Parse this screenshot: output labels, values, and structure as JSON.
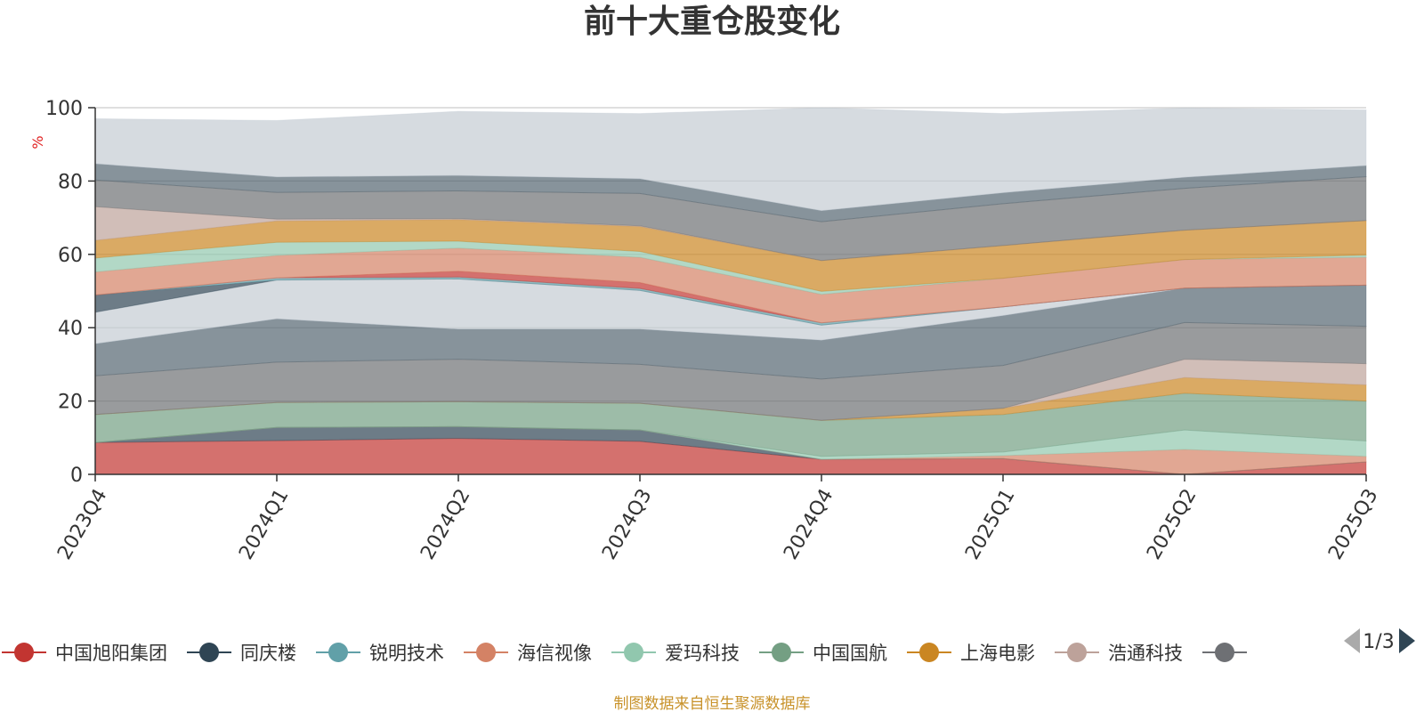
{
  "colors": {
    "unit": "#e02020",
    "source": "#c8922a",
    "axis": "#333333",
    "grid": "#d9d9d9"
  },
  "footer": {
    "source": "制图数据来自恒生聚源数据库"
  },
  "legend": {
    "page": "1/3",
    "items": [
      {
        "name": "中国旭阳集团",
        "color": "#c23531"
      },
      {
        "name": "同庆楼",
        "color": "#2f4554"
      },
      {
        "name": "锐明技术",
        "color": "#61a0a8"
      },
      {
        "name": "海信视像",
        "color": "#d48265"
      },
      {
        "name": "爱玛科技",
        "color": "#91c7ae"
      },
      {
        "name": "中国国航",
        "color": "#749f83"
      },
      {
        "name": "上海电影",
        "color": "#ca8622"
      },
      {
        "name": "浩通科技",
        "color": "#bda29a"
      },
      {
        "name": "",
        "color": "#6e7074"
      }
    ]
  },
  "chart_data": {
    "type": "area",
    "stacked": true,
    "title": "前十大重仓股变化",
    "ylabel": "%",
    "ylim": [
      0,
      100
    ],
    "yticks": [
      0,
      20,
      40,
      60,
      80,
      100
    ],
    "grid": true,
    "legend_position": "bottom",
    "categories": [
      "2023Q4",
      "2024Q1",
      "2024Q2",
      "2024Q3",
      "2024Q4",
      "2025Q1",
      "2025Q2",
      "2025Q3"
    ],
    "series": [
      {
        "name": "中国旭阳集团",
        "color": "#c23531",
        "values": [
          8.7,
          9.2,
          9.8,
          9.0,
          4.1,
          4.3,
          0,
          3.4
        ]
      },
      {
        "name": "同庆楼",
        "color": "#2f4554",
        "values": [
          0,
          3.6,
          3.2,
          3.1,
          0,
          0,
          0,
          0
        ]
      },
      {
        "name": "锐明技术",
        "color": "#61a0a8",
        "values": [
          0,
          0,
          0,
          0,
          0,
          0,
          0,
          0
        ]
      },
      {
        "name": "海信视像",
        "color": "#d48265",
        "values": [
          0,
          0,
          0,
          0,
          0,
          0.8,
          6.8,
          1.5
        ]
      },
      {
        "name": "爱玛科技",
        "color": "#91c7ae",
        "values": [
          0,
          0,
          0,
          0,
          0.8,
          1.0,
          5.3,
          4.2
        ]
      },
      {
        "name": "中国国航",
        "color": "#749f83",
        "values": [
          7.6,
          6.8,
          6.8,
          7.3,
          9.8,
          10.2,
          10.0,
          10.9
        ]
      },
      {
        "name": "上海电影",
        "color": "#ca8622",
        "values": [
          0,
          0,
          0,
          0,
          0,
          1.7,
          4.3,
          4.4
        ]
      },
      {
        "name": "浩通科技",
        "color": "#bda29a",
        "values": [
          0,
          0,
          0,
          0,
          0,
          0,
          5.0,
          5.8
        ]
      },
      {
        "name": "",
        "color": "#6e7074",
        "values": [
          10.6,
          11.0,
          11.6,
          10.6,
          11.3,
          11.7,
          10.0,
          10.2
        ]
      },
      {
        "name": "",
        "color": "#546570",
        "values": [
          8.7,
          11.8,
          8.2,
          9.6,
          10.6,
          13.6,
          9.4,
          11.2
        ]
      },
      {
        "name": "",
        "color": "#c4ccd3",
        "values": [
          8.6,
          10.6,
          13.7,
          10.6,
          4.1,
          2.4,
          0,
          0
        ]
      },
      {
        "name": "",
        "color": "#2f4554",
        "values": [
          4.7,
          0,
          0,
          0,
          0,
          0,
          0,
          0
        ]
      },
      {
        "name": "",
        "color": "#61a0a8",
        "values": [
          0,
          0.6,
          0.5,
          0.5,
          0.6,
          0,
          0,
          0
        ]
      },
      {
        "name": "",
        "color": "#c23531",
        "values": [
          0,
          0,
          1.6,
          1.6,
          0,
          0,
          0,
          0
        ]
      },
      {
        "name": "",
        "color": "#d48265",
        "values": [
          6.3,
          6.1,
          6.3,
          6.9,
          7.8,
          7.8,
          7.8,
          7.6
        ]
      },
      {
        "name": "",
        "color": "#91c7ae",
        "values": [
          3.8,
          3.6,
          1.9,
          1.6,
          0.8,
          0,
          0,
          0.6
        ]
      },
      {
        "name": "",
        "color": "#ca8622",
        "values": [
          4.8,
          5.8,
          5.9,
          6.8,
          8.4,
          8.9,
          8.0,
          9.4
        ]
      },
      {
        "name": "",
        "color": "#bda29a",
        "values": [
          9.2,
          0.5,
          0.2,
          0.2,
          0,
          0,
          0,
          0
        ]
      },
      {
        "name": "",
        "color": "#6e7074",
        "values": [
          7.3,
          7.3,
          7.6,
          8.8,
          10.6,
          11.4,
          11.4,
          12.0
        ]
      },
      {
        "name": "",
        "color": "#546570",
        "values": [
          4.4,
          4.2,
          4.2,
          4.0,
          3.0,
          3.0,
          3.0,
          3.0
        ]
      },
      {
        "name": "",
        "color": "#c4ccd3",
        "values": [
          12.3,
          15.4,
          17.5,
          17.8,
          28.1,
          21.6,
          18.9,
          15.2
        ]
      }
    ]
  }
}
